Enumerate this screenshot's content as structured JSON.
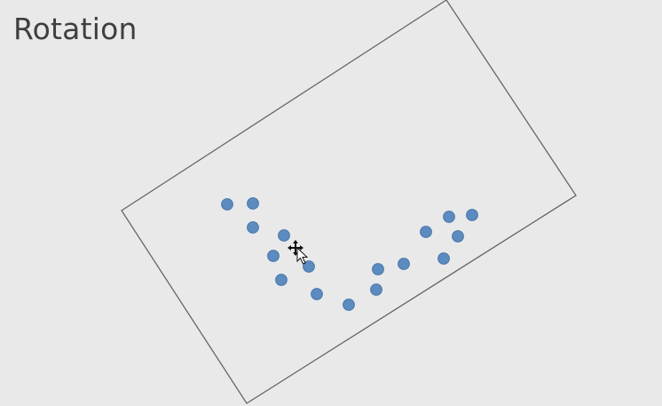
{
  "slide": {
    "title": "Rotation"
  },
  "scene": {
    "frame_shape": "rotated-rectangle",
    "point_color": "#5b8bbf",
    "point_count": 17,
    "cursor": "move-arrow-icon"
  }
}
